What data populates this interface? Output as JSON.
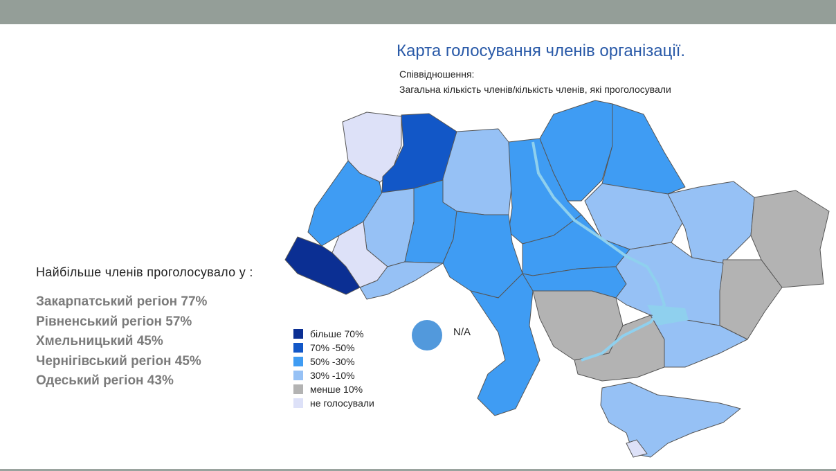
{
  "title": "Карта голосування членів організації.",
  "subtitle": {
    "line1": "Співвідношення:",
    "line2": "Загальна кількість членів/кількість членів, які проголосували"
  },
  "legend": [
    {
      "label": "більше 70%",
      "color": "#0b2f93"
    },
    {
      "label": "70% -50%",
      "color": "#1257c7"
    },
    {
      "label": "50% -30%",
      "color": "#3f9cf3"
    },
    {
      "label": "30% -10%",
      "color": "#96c1f5"
    },
    {
      "label": "менше 10%",
      "color": "#b3b3b3"
    },
    {
      "label": "не голосували",
      "color": "#dde1f8"
    }
  ],
  "na": {
    "label": "N/A",
    "color": "#5299dc"
  },
  "top_regions": {
    "heading": "Найбільше  членів  проголосувало  у :",
    "items": [
      "Закарпатський регіон 77%",
      "Рівненський регіон 57%",
      "Хмельницький 45%",
      "Чернігівський регіон 45%",
      "Одеський регіон 43%"
    ]
  }
}
